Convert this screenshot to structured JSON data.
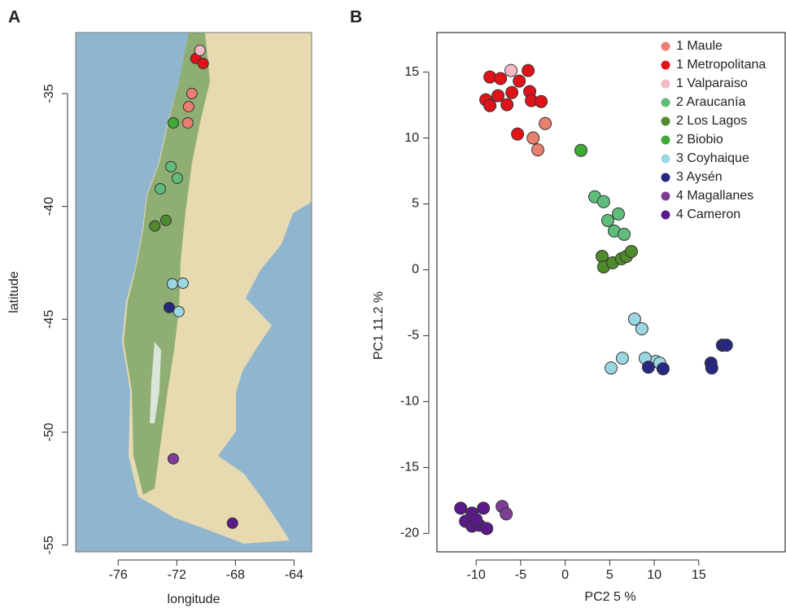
{
  "chart_data": [
    {
      "type": "scatter",
      "panel": "A",
      "map": true,
      "xlabel": "longitude",
      "ylabel": "latitude",
      "xlim": [
        -78.9,
        -62.8
      ],
      "ylim": [
        -55.3,
        -32.3
      ],
      "xticks": [
        -76,
        -72,
        -68,
        -64
      ],
      "yticks": [
        -55,
        -50,
        -45,
        -40,
        -35
      ],
      "series": [
        {
          "color": "#e8806f",
          "x": [
            -70.97,
            -71.19,
            -71.25
          ],
          "y": [
            -35.0,
            -35.58,
            -36.3
          ]
        },
        {
          "color": "#e0131a",
          "x": [
            -70.7,
            -70.2
          ],
          "y": [
            -33.45,
            -33.67
          ]
        },
        {
          "color": "#f6b8c4",
          "x": [
            -70.42
          ],
          "y": [
            -33.09
          ]
        },
        {
          "color": "#5fbc7a",
          "x": [
            -72.4,
            -71.97,
            -73.13
          ],
          "y": [
            -38.24,
            -38.75,
            -39.22
          ]
        },
        {
          "color": "#4f8a2c",
          "x": [
            -73.5,
            -72.74
          ],
          "y": [
            -40.87,
            -40.62
          ]
        },
        {
          "color": "#3faa35",
          "x": [
            -72.24
          ],
          "y": [
            -36.3
          ]
        },
        {
          "color": "#9bd6e2",
          "x": [
            -72.3,
            -71.58,
            -71.86
          ],
          "y": [
            -43.43,
            -43.4,
            -44.66
          ]
        },
        {
          "color": "#27287f",
          "x": [
            -72.52
          ],
          "y": [
            -44.48
          ]
        },
        {
          "color": "#7f3d98",
          "x": [
            -72.24
          ],
          "y": [
            -51.18
          ]
        },
        {
          "color": "#5a1a8a",
          "x": [
            -68.2
          ],
          "y": [
            -54.03
          ]
        }
      ]
    },
    {
      "type": "scatter",
      "panel": "B",
      "xlabel": "PC2 5 %",
      "ylabel": "PC1 11.2 %",
      "xlim": [
        -14.4,
        24.7
      ],
      "ylim": [
        -21.4,
        18.0
      ],
      "xticks": [
        -10,
        -5,
        0,
        5,
        10,
        15
      ],
      "yticks": [
        -20,
        -15,
        -10,
        -5,
        0,
        5,
        10,
        15
      ],
      "legend": "top-right",
      "series": [
        {
          "name": "1 Maule",
          "color": "#e8806f",
          "x": [
            -2.24,
            -3.6,
            -3.07
          ],
          "y": [
            11.1,
            10.0,
            9.1
          ]
        },
        {
          "name": "1 Metropolitana",
          "color": "#e0131a",
          "x": [
            -8.45,
            -7.26,
            -4.16,
            -5.16,
            -5.99,
            -7.54,
            -8.91,
            -8.45,
            -6.53,
            -3.98,
            -3.8,
            -2.7,
            -5.35
          ],
          "y": [
            14.63,
            14.51,
            15.12,
            14.32,
            13.45,
            13.21,
            12.9,
            12.46,
            12.53,
            13.52,
            12.84,
            12.77,
            10.3
          ]
        },
        {
          "name": "1 Valparaiso",
          "color": "#f6b8c4",
          "x": [
            -6.08
          ],
          "y": [
            15.12
          ]
        },
        {
          "name": "2 Araucanía",
          "color": "#5fbc7a",
          "x": [
            3.32,
            4.32,
            4.78,
            5.97,
            5.51,
            6.61
          ],
          "y": [
            5.54,
            5.17,
            3.74,
            4.24,
            2.94,
            2.69
          ]
        },
        {
          "name": "2 Los Lagos",
          "color": "#4f8a2c",
          "x": [
            4.14,
            4.32,
            5.33,
            6.33,
            6.88,
            7.43
          ],
          "y": [
            1.02,
            0.22,
            0.53,
            0.84,
            1.02,
            1.39
          ]
        },
        {
          "name": "2 Biobio",
          "color": "#3faa35",
          "x": [
            1.77
          ],
          "y": [
            9.06
          ]
        },
        {
          "name": "3 Coyhaique",
          "color": "#9bd6e2",
          "x": [
            7.79,
            8.61,
            6.42,
            5.15,
            10.16,
            10.62,
            8.98
          ],
          "y": [
            -3.74,
            -4.48,
            -6.71,
            -7.45,
            -6.95,
            -7.08,
            -6.71
          ]
        },
        {
          "name": "3 Aysén",
          "color": "#27287f",
          "x": [
            9.34,
            10.99,
            16.37,
            17.65,
            18.1,
            16.46
          ],
          "y": [
            -7.39,
            -7.51,
            -7.08,
            -5.72,
            -5.72,
            -7.45
          ]
        },
        {
          "name": "4 Magallanes",
          "color": "#7f3d98",
          "x": [
            -7.08,
            -6.62
          ],
          "y": [
            -17.96,
            -18.52
          ]
        },
        {
          "name": "4 Cameron",
          "color": "#5a1a8a",
          "x": [
            -11.73,
            -10.46,
            -9.18,
            -11.19,
            -10.46,
            -9.64,
            -8.81,
            -10.0
          ],
          "y": [
            -18.09,
            -18.46,
            -18.09,
            -19.08,
            -19.45,
            -19.38,
            -19.63,
            -18.95
          ]
        }
      ]
    }
  ]
}
